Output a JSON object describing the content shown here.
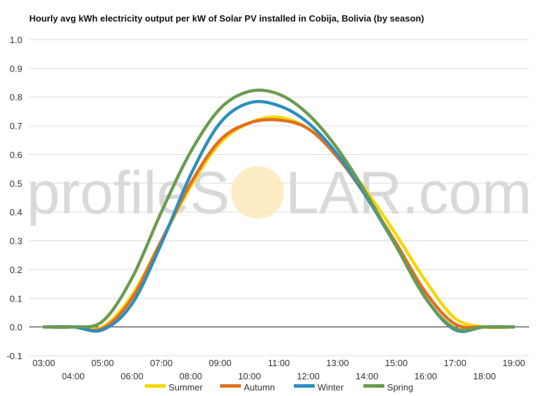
{
  "chart_data": {
    "type": "line",
    "title": "Hourly avg kWh electricity output per kW of Solar PV installed in Cobija, Bolivia (by season)",
    "xlabel": "",
    "ylabel": "",
    "x": [
      "03:00",
      "04:00",
      "05:00",
      "06:00",
      "07:00",
      "08:00",
      "09:00",
      "10:00",
      "11:00",
      "12:00",
      "13:00",
      "14:00",
      "15:00",
      "16:00",
      "17:00",
      "18:00",
      "19:00"
    ],
    "ylim": [
      -0.1,
      1.0
    ],
    "yticks": [
      "1.0",
      "0.9",
      "0.8",
      "0.7",
      "0.6",
      "0.5",
      "0.4",
      "0.3",
      "0.2",
      "0.1",
      "0.0",
      "-0.1"
    ],
    "grid": true,
    "legend_position": "bottom",
    "series": [
      {
        "name": "Summer",
        "color": "#f5d60a",
        "values": [
          0.0,
          0.0,
          0.0,
          0.11,
          0.3,
          0.49,
          0.64,
          0.71,
          0.73,
          0.69,
          0.6,
          0.47,
          0.32,
          0.16,
          0.03,
          0.0,
          0.0
        ]
      },
      {
        "name": "Autumn",
        "color": "#e07020",
        "values": [
          0.0,
          0.0,
          -0.005,
          0.1,
          0.3,
          0.5,
          0.65,
          0.71,
          0.72,
          0.69,
          0.59,
          0.45,
          0.29,
          0.12,
          0.01,
          0.0,
          0.0
        ]
      },
      {
        "name": "Winter",
        "color": "#2c8fbf",
        "values": [
          0.0,
          0.0,
          -0.01,
          0.08,
          0.29,
          0.53,
          0.71,
          0.78,
          0.77,
          0.71,
          0.6,
          0.45,
          0.28,
          0.1,
          -0.01,
          0.0,
          0.0
        ]
      },
      {
        "name": "Spring",
        "color": "#6b9b50",
        "values": [
          0.0,
          0.0,
          0.02,
          0.17,
          0.4,
          0.61,
          0.76,
          0.82,
          0.81,
          0.74,
          0.62,
          0.46,
          0.28,
          0.1,
          -0.005,
          0.0,
          0.0
        ]
      }
    ]
  },
  "watermark": {
    "left": "profileS",
    "right": "LAR.com"
  }
}
